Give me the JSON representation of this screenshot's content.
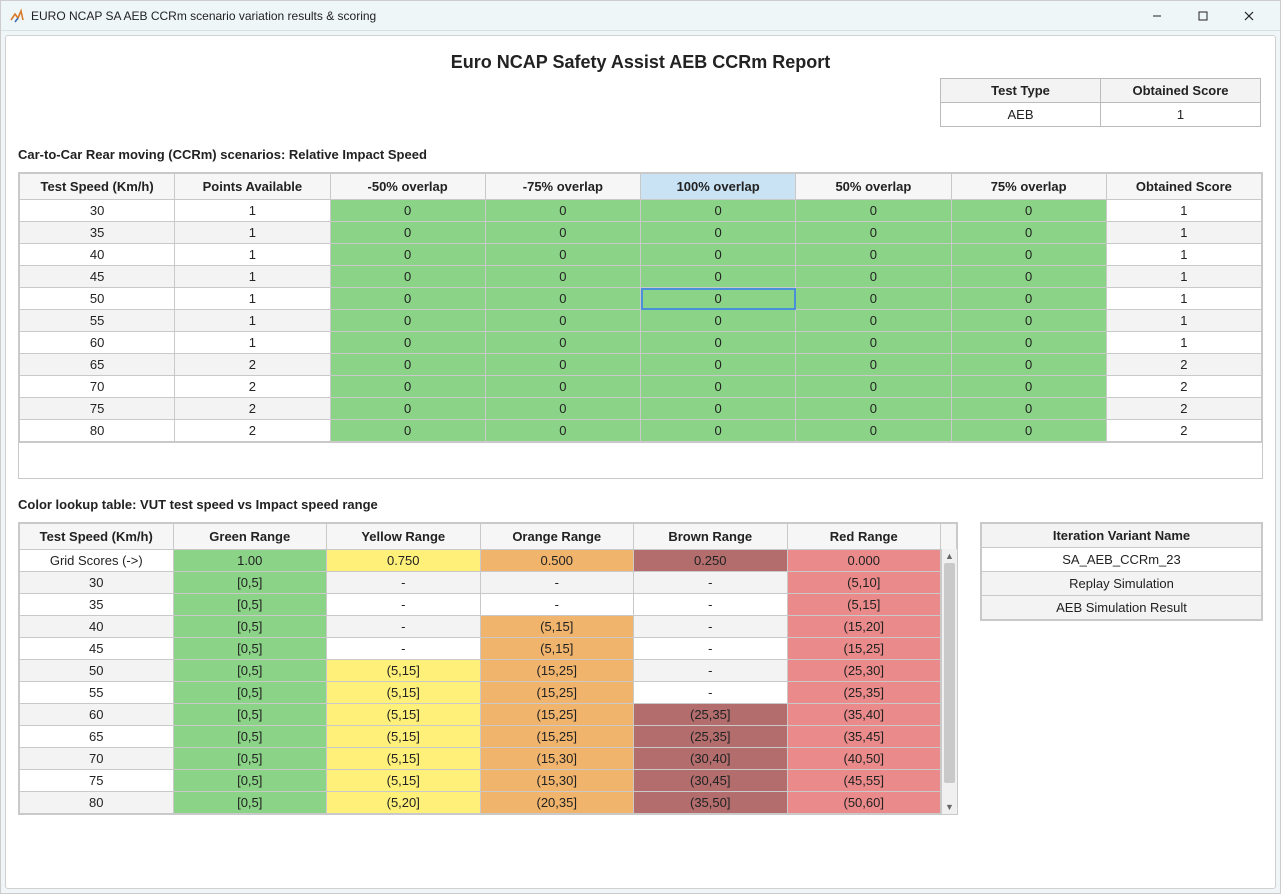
{
  "window": {
    "title": "EURO NCAP SA AEB CCRm scenario variation results & scoring"
  },
  "report_title": "Euro NCAP Safety Assist AEB CCRm Report",
  "summary": {
    "headers": [
      "Test Type",
      "Obtained Score"
    ],
    "values": [
      "AEB",
      "1"
    ]
  },
  "section1_label": "Car-to-Car Rear moving (CCRm) scenarios: Relative Impact Speed",
  "results_table": {
    "columns": [
      "Test Speed (Km/h)",
      "Points Available",
      "-50% overlap",
      "-75% overlap",
      "100% overlap",
      "50% overlap",
      "75% overlap",
      "Obtained Score"
    ],
    "highlight_col_index": 4,
    "selected_cell": {
      "row": 4,
      "col": 4
    },
    "green_cols": [
      2,
      3,
      4,
      5,
      6
    ],
    "rows": [
      [
        "30",
        "1",
        "0",
        "0",
        "0",
        "0",
        "0",
        "1"
      ],
      [
        "35",
        "1",
        "0",
        "0",
        "0",
        "0",
        "0",
        "1"
      ],
      [
        "40",
        "1",
        "0",
        "0",
        "0",
        "0",
        "0",
        "1"
      ],
      [
        "45",
        "1",
        "0",
        "0",
        "0",
        "0",
        "0",
        "1"
      ],
      [
        "50",
        "1",
        "0",
        "0",
        "0",
        "0",
        "0",
        "1"
      ],
      [
        "55",
        "1",
        "0",
        "0",
        "0",
        "0",
        "0",
        "1"
      ],
      [
        "60",
        "1",
        "0",
        "0",
        "0",
        "0",
        "0",
        "1"
      ],
      [
        "65",
        "2",
        "0",
        "0",
        "0",
        "0",
        "0",
        "2"
      ],
      [
        "70",
        "2",
        "0",
        "0",
        "0",
        "0",
        "0",
        "2"
      ],
      [
        "75",
        "2",
        "0",
        "0",
        "0",
        "0",
        "0",
        "2"
      ],
      [
        "80",
        "2",
        "0",
        "0",
        "0",
        "0",
        "0",
        "2"
      ]
    ]
  },
  "section2_label": "Color lookup table: VUT test speed vs Impact speed range",
  "lookup_table": {
    "columns": [
      "Test Speed (Km/h)",
      "Green Range",
      "Yellow Range",
      "Orange Range",
      "Brown Range",
      "Red Range"
    ],
    "color_classes": [
      "",
      "cell-green",
      "cell-yellow",
      "cell-orange",
      "cell-brown",
      "cell-red"
    ],
    "rows": [
      {
        "cells": [
          "Grid Scores (->)",
          "1.00",
          "0.750",
          "0.500",
          "0.250",
          "0.000"
        ],
        "force_color": [
          false,
          true,
          true,
          true,
          true,
          true
        ]
      },
      {
        "cells": [
          "30",
          "[0,5]",
          "-",
          "-",
          "-",
          "(5,10]"
        ],
        "force_color": [
          false,
          true,
          false,
          false,
          false,
          true
        ]
      },
      {
        "cells": [
          "35",
          "[0,5]",
          "-",
          "-",
          "-",
          "(5,15]"
        ],
        "force_color": [
          false,
          true,
          false,
          false,
          false,
          true
        ]
      },
      {
        "cells": [
          "40",
          "[0,5]",
          "-",
          "(5,15]",
          "-",
          "(15,20]"
        ],
        "force_color": [
          false,
          true,
          false,
          true,
          false,
          true
        ]
      },
      {
        "cells": [
          "45",
          "[0,5]",
          "-",
          "(5,15]",
          "-",
          "(15,25]"
        ],
        "force_color": [
          false,
          true,
          false,
          true,
          false,
          true
        ]
      },
      {
        "cells": [
          "50",
          "[0,5]",
          "(5,15]",
          "(15,25]",
          "-",
          "(25,30]"
        ],
        "force_color": [
          false,
          true,
          true,
          true,
          false,
          true
        ]
      },
      {
        "cells": [
          "55",
          "[0,5]",
          "(5,15]",
          "(15,25]",
          "-",
          "(25,35]"
        ],
        "force_color": [
          false,
          true,
          true,
          true,
          false,
          true
        ]
      },
      {
        "cells": [
          "60",
          "[0,5]",
          "(5,15]",
          "(15,25]",
          "(25,35]",
          "(35,40]"
        ],
        "force_color": [
          false,
          true,
          true,
          true,
          true,
          true
        ]
      },
      {
        "cells": [
          "65",
          "[0,5]",
          "(5,15]",
          "(15,25]",
          "(25,35]",
          "(35,45]"
        ],
        "force_color": [
          false,
          true,
          true,
          true,
          true,
          true
        ]
      },
      {
        "cells": [
          "70",
          "[0,5]",
          "(5,15]",
          "(15,30]",
          "(30,40]",
          "(40,50]"
        ],
        "force_color": [
          false,
          true,
          true,
          true,
          true,
          true
        ]
      },
      {
        "cells": [
          "75",
          "[0,5]",
          "(5,15]",
          "(15,30]",
          "(30,45]",
          "(45,55]"
        ],
        "force_color": [
          false,
          true,
          true,
          true,
          true,
          true
        ]
      },
      {
        "cells": [
          "80",
          "[0,5]",
          "(5,20]",
          "(20,35]",
          "(35,50]",
          "(50,60]"
        ],
        "force_color": [
          false,
          true,
          true,
          true,
          true,
          true
        ]
      }
    ]
  },
  "variant": {
    "header": "Iteration Variant Name",
    "name": "SA_AEB_CCRm_23",
    "replay_label": "Replay Simulation",
    "result_label": "AEB Simulation Result"
  },
  "colors": {
    "green": "#8bd387",
    "yellow": "#fff07a",
    "orange": "#f0b46c",
    "brown": "#b36d6d",
    "red": "#ea8a8a",
    "header_bg": "#f6f6f6",
    "grid": "#c9c9c9",
    "highlight_header": "#c9e3f5",
    "selection": "#4a90d9"
  }
}
